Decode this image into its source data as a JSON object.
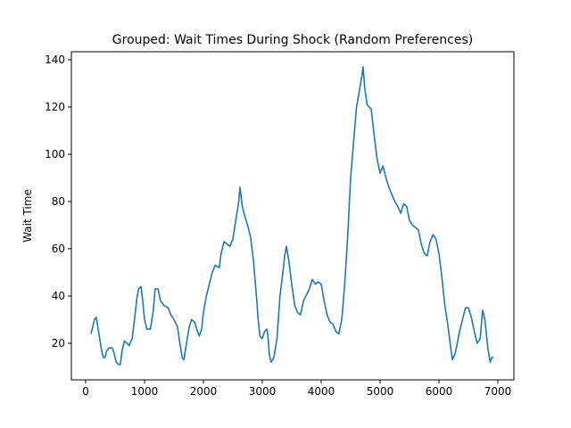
{
  "chart_data": {
    "type": "line",
    "title": "Grouped: Wait Times During Shock (Random Preferences)",
    "y_label": "Wait Time",
    "color": "#1f77b4",
    "x": [
      91,
      150,
      180,
      220,
      270,
      300,
      330,
      360,
      400,
      450,
      480,
      520,
      560,
      590,
      620,
      660,
      700,
      740,
      790,
      830,
      870,
      900,
      940,
      970,
      1000,
      1040,
      1100,
      1150,
      1180,
      1230,
      1270,
      1330,
      1400,
      1450,
      1500,
      1560,
      1600,
      1640,
      1670,
      1700,
      1760,
      1800,
      1850,
      1900,
      1930,
      1970,
      2000,
      2050,
      2100,
      2150,
      2200,
      2270,
      2300,
      2350,
      2400,
      2450,
      2500,
      2550,
      2600,
      2621,
      2660,
      2700,
      2750,
      2800,
      2850,
      2900,
      2930,
      2960,
      3000,
      3040,
      3080,
      3100,
      3120,
      3150,
      3197,
      3250,
      3300,
      3350,
      3380,
      3409,
      3450,
      3500,
      3550,
      3600,
      3650,
      3700,
      3800,
      3850,
      3900,
      3950,
      4000,
      4050,
      4100,
      4150,
      4200,
      4250,
      4300,
      4350,
      4400,
      4450,
      4500,
      4550,
      4600,
      4650,
      4690,
      4712,
      4740,
      4780,
      4850,
      4900,
      4950,
      5000,
      5050,
      5100,
      5150,
      5200,
      5250,
      5300,
      5350,
      5400,
      5450,
      5500,
      5550,
      5600,
      5650,
      5700,
      5750,
      5800,
      5850,
      5900,
      5950,
      6000,
      6050,
      6100,
      6150,
      6200,
      6230,
      6280,
      6350,
      6400,
      6450,
      6500,
      6550,
      6600,
      6650,
      6700,
      6742,
      6780,
      6830,
      6870,
      6900,
      6924
    ],
    "values": [
      24,
      30,
      31,
      25,
      17,
      14,
      14,
      17,
      18,
      18,
      16,
      12,
      11,
      11,
      17,
      21,
      20,
      19,
      22,
      30,
      39,
      43,
      44,
      38,
      30,
      26,
      26,
      34,
      43,
      43,
      38,
      36,
      35,
      32,
      30,
      27,
      20,
      14,
      13,
      18,
      27,
      30,
      29,
      25,
      23,
      26,
      33,
      40,
      45,
      50,
      53,
      52,
      58,
      63,
      62,
      61,
      64,
      72,
      80,
      86,
      78,
      74,
      70,
      65,
      55,
      40,
      30,
      23,
      22,
      25,
      26,
      22,
      15,
      12,
      14,
      22,
      40,
      50,
      57,
      61,
      55,
      45,
      36,
      33,
      32,
      38,
      43,
      47,
      45,
      46,
      45,
      38,
      32,
      29,
      28,
      25,
      24,
      30,
      45,
      65,
      90,
      105,
      120,
      127,
      133,
      137,
      128,
      121,
      119,
      108,
      98,
      92,
      95,
      90,
      86,
      83,
      80,
      78,
      75,
      79,
      78,
      72,
      70,
      69,
      68,
      62,
      58,
      57,
      63,
      66,
      64,
      58,
      48,
      36,
      28,
      18,
      13,
      16,
      25,
      30,
      35,
      35,
      31,
      25,
      20,
      22,
      34,
      30,
      18,
      12,
      14,
      14
    ],
    "xlim": [
      -242,
      7273
    ],
    "ylim": [
      4.5,
      143.4
    ],
    "xticks": [
      0,
      1000,
      2000,
      3000,
      4000,
      5000,
      6000,
      7000
    ],
    "yticks": [
      20,
      40,
      60,
      80,
      100,
      120,
      140
    ]
  }
}
